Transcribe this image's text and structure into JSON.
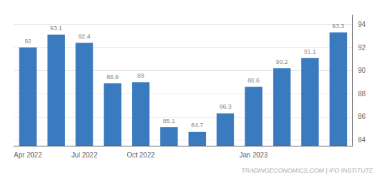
{
  "chart_data": {
    "type": "bar",
    "categories": [
      "Apr 2022",
      null,
      "Jul 2022",
      null,
      "Oct 2022",
      null,
      null,
      null,
      "Jan 2023",
      null,
      null,
      null
    ],
    "values": [
      92.0,
      93.1,
      92.4,
      88.9,
      89.0,
      85.1,
      84.7,
      86.3,
      88.6,
      90.2,
      91.1,
      93.3
    ],
    "color": "#3a7abf",
    "ylim": [
      83.5,
      94.8
    ],
    "yticks": [
      84,
      86,
      88,
      90,
      92,
      94
    ],
    "grid": true,
    "data_labels": true,
    "annotations": [
      "TRADINGECONOMICS.COM | IFO INSTITUTE"
    ]
  }
}
